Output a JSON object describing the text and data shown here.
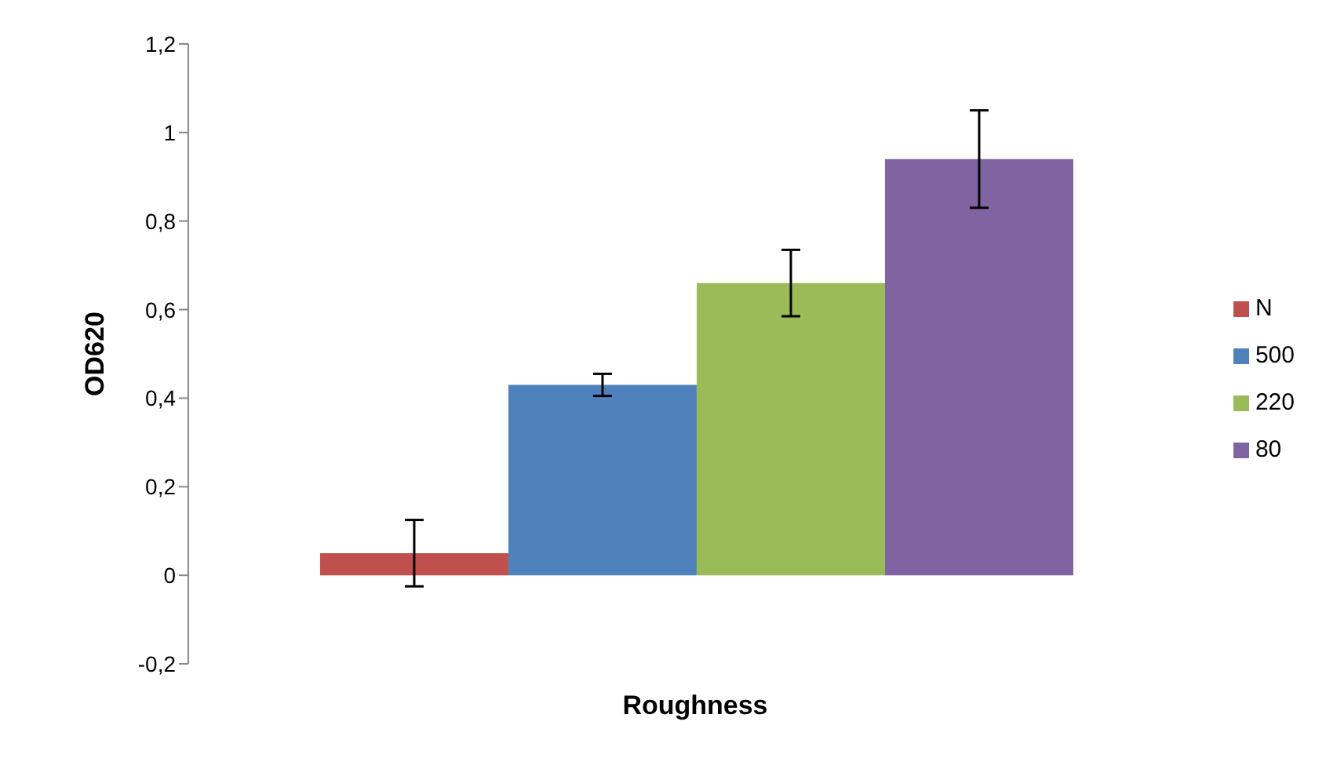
{
  "chart_data": {
    "type": "bar",
    "xlabel": "Roughness",
    "ylabel": "OD620",
    "categories": [
      null
    ],
    "series": [
      {
        "name": "N",
        "color": "#c0504d",
        "values": [
          0.05
        ],
        "errors": [
          0.075
        ]
      },
      {
        "name": "500",
        "color": "#4f81bd",
        "values": [
          0.43
        ],
        "errors": [
          0.025
        ]
      },
      {
        "name": "220",
        "color": "#9bbb59",
        "values": [
          0.66
        ],
        "errors": [
          0.075
        ]
      },
      {
        "name": "80",
        "color": "#8064a2",
        "values": [
          0.94
        ],
        "errors": [
          0.11
        ]
      }
    ],
    "ylim": [
      -0.2,
      1.2
    ],
    "yticks": [
      {
        "value": -0.2,
        "label": "-0,2"
      },
      0,
      {
        "value": 0.2,
        "label": "0,2"
      },
      {
        "value": 0.4,
        "label": "0,4"
      },
      {
        "value": 0.6,
        "label": "0,6"
      },
      {
        "value": 0.8,
        "label": "0,8"
      },
      1,
      {
        "value": 1.2,
        "label": "1,2"
      }
    ],
    "grid": false,
    "legend": "right"
  }
}
